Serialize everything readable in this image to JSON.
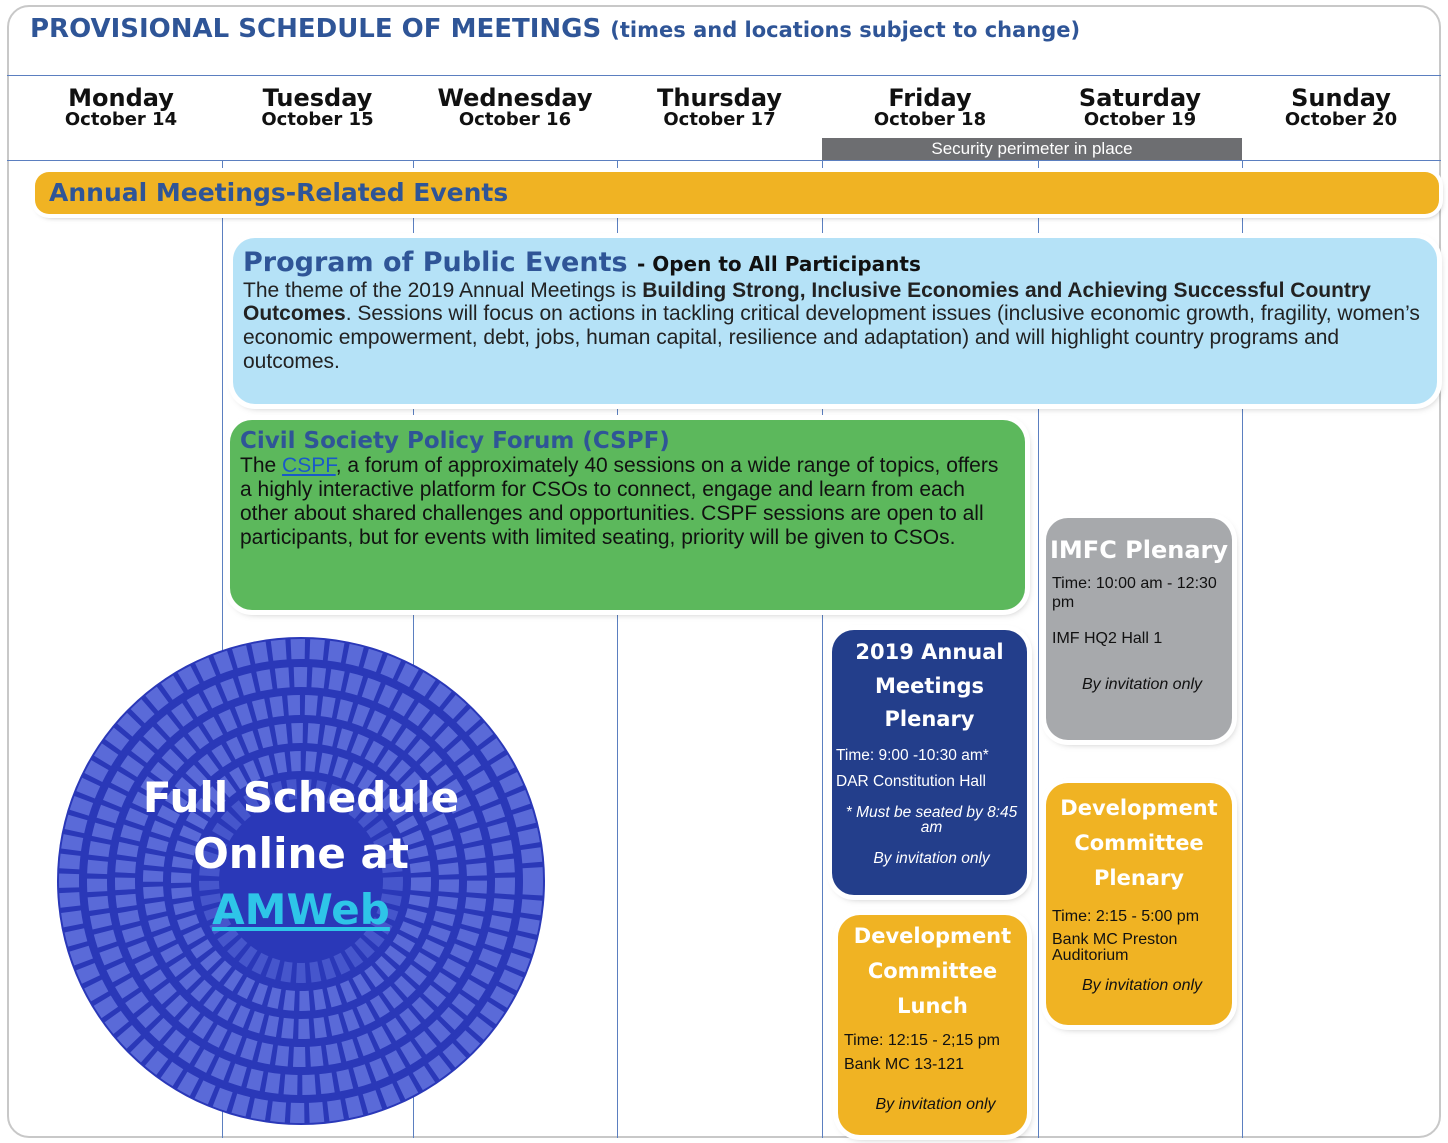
{
  "header": {
    "title": "PROVISIONAL SCHEDULE OF MEETINGS",
    "subtitle": "(times and locations subject to change)"
  },
  "days": [
    {
      "day": "Monday",
      "date": "October 14"
    },
    {
      "day": "Tuesday",
      "date": "October 15"
    },
    {
      "day": "Wednesday",
      "date": "October 16"
    },
    {
      "day": "Thursday",
      "date": "October 17"
    },
    {
      "day": "Friday",
      "date": "October 18"
    },
    {
      "day": "Saturday",
      "date": "October 19"
    },
    {
      "day": "Sunday",
      "date": "October 20"
    }
  ],
  "security_note": "Security perimeter in place",
  "band": "Annual Meetings-Related Events",
  "public_events": {
    "title": "Program of Public Events",
    "subtitle": "- Open to All Participants",
    "text_1": "The theme of the 2019 Annual Meetings is ",
    "bold": "Building Strong, Inclusive Economies and Achieving Successful Country Outcomes",
    "text_2": ". Sessions will focus on actions in tackling critical development issues (inclusive economic growth, fragility, women’s economic empowerment, debt, jobs, human capital, resilience and adaptation) and will highlight country programs and outcomes."
  },
  "cspf": {
    "title": "Civil Society Policy Forum (CSPF)",
    "text_1": "The ",
    "link": "CSPF",
    "text_2": ", a forum of approximately 40 sessions on a wide range of topics, offers a highly interactive platform for CSOs to connect, engage and learn from each other about shared challenges and opportunities. CSPF sessions are open to all participants, but for events with limited seating, priority will be given to CSOs."
  },
  "circle": {
    "line_1": "Full Schedule",
    "line_2": "Online at",
    "link": "AMWeb"
  },
  "plenary": {
    "title": "2019 Annual Meetings Plenary",
    "time": "Time: 9:00 -10:30 am*",
    "location": "DAR Constitution Hall",
    "note": "* Must be seated by 8:45 am",
    "invite": "By invitation only"
  },
  "imfc": {
    "title": "IMFC Plenary",
    "time": "Time: 10:00 am - 12:30 pm",
    "location": "IMF HQ2 Hall 1",
    "invite": "By invitation only"
  },
  "dc_plenary": {
    "title": "Development Committee Plenary",
    "time": "Time: 2:15 - 5:00 pm",
    "location": "Bank MC Preston Auditorium",
    "invite": "By invitation only"
  },
  "dc_lunch": {
    "title": "Development Committee Lunch",
    "time": "Time: 12:15 - 2;15 pm",
    "location": "Bank MC 13-121",
    "invite": "By invitation only"
  }
}
